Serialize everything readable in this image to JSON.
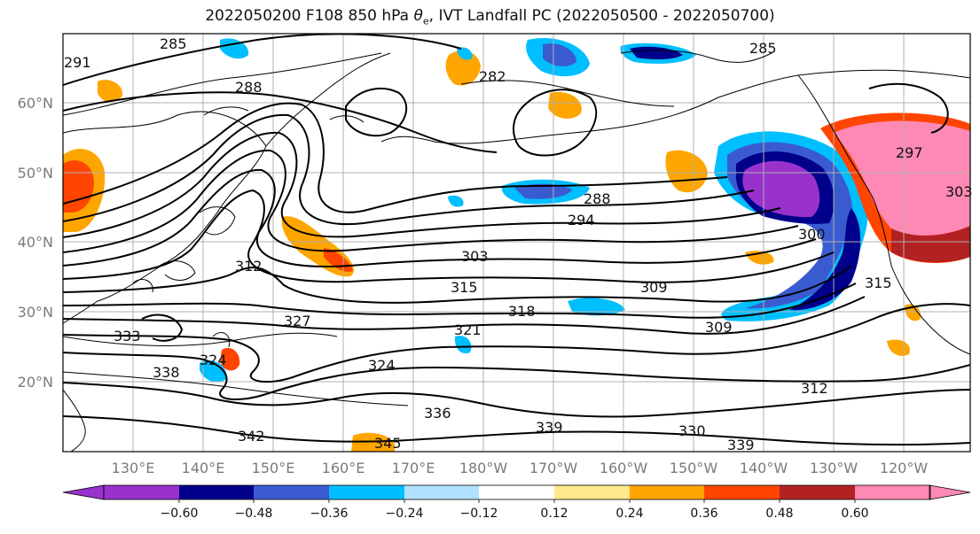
{
  "title": {
    "prefix": "2022050200 F108 850 hPa ",
    "theta": "θ",
    "sub": "e",
    "suffix": ", IVT Landfall PC (2022050500 - 2022050700)"
  },
  "map": {
    "lon_labels": [
      "130°E",
      "140°E",
      "150°E",
      "160°E",
      "170°E",
      "180°W",
      "170°W",
      "160°W",
      "150°W",
      "140°W",
      "130°W",
      "120°W"
    ],
    "lat_labels": [
      "60°N",
      "50°N",
      "40°N",
      "30°N",
      "20°N"
    ],
    "contour_labels": [
      "285",
      "282",
      "288",
      "285",
      "291",
      "288",
      "294",
      "303",
      "312",
      "315",
      "300",
      "309",
      "318",
      "327",
      "321",
      "315",
      "309",
      "333",
      "324",
      "338",
      "312",
      "336",
      "339",
      "342",
      "345",
      "330",
      "339",
      "297",
      "303",
      "324"
    ]
  },
  "colorbar": {
    "ticks": [
      "−0.60",
      "−0.48",
      "−0.36",
      "−0.24",
      "−0.12",
      "0.12",
      "0.24",
      "0.36",
      "0.48",
      "0.60"
    ],
    "colors": [
      "#9932CC",
      "#00008B",
      "#3A5BD0",
      "#00BFFF",
      "#B0E2FF",
      "#FFFFFF",
      "#FFE98A",
      "#FFA500",
      "#FF4500",
      "#B22222",
      "#FF89B5",
      "#FF89B5"
    ]
  },
  "field": {
    "negative_colors": [
      "#9932CC",
      "#00008B",
      "#3A5BD0",
      "#00BFFF",
      "#B0E2FF"
    ],
    "positive_colors": [
      "#FFE98A",
      "#FFA500",
      "#FF4500",
      "#B22222",
      "#FF89B5"
    ]
  }
}
